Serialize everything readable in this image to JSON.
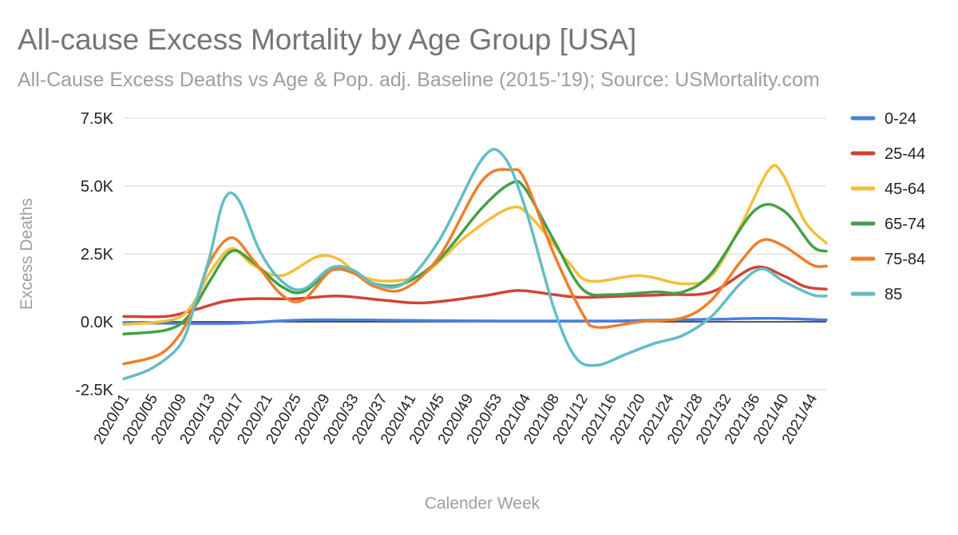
{
  "chart_data": {
    "type": "line",
    "title": "All-cause Excess Mortality by Age Group [USA]",
    "subtitle": "All-Cause Excess Deaths vs Age & Pop. adj. Baseline (2015-'19); Source: USMortality.com",
    "xlabel": "Calender Week",
    "ylabel": "Excess Deaths",
    "ylim": [
      -2500,
      7500
    ],
    "y_ticks": [
      -2500,
      0,
      2500,
      5000,
      7500
    ],
    "y_tick_labels": [
      "-2.5K",
      "0.0K",
      "2.5K",
      "5.0K",
      "7.5K"
    ],
    "x_tick_labels": [
      "2020/01",
      "2020/05",
      "2020/09",
      "2020/13",
      "2020/17",
      "2020/21",
      "2020/25",
      "2020/29",
      "2020/33",
      "2020/37",
      "2020/41",
      "2020/45",
      "2020/49",
      "2020/53",
      "2021/04",
      "2021/08",
      "2021/12",
      "2021/16",
      "2021/20",
      "2021/24",
      "2021/28",
      "2021/32",
      "2021/36",
      "2021/40",
      "2021/44"
    ],
    "weeks_total": 99,
    "grid": true,
    "legend_position": "right",
    "series": [
      {
        "name": "0-24",
        "color": "#4a7fe0",
        "points": [
          [
            0,
            -30
          ],
          [
            8,
            -60
          ],
          [
            16,
            -50
          ],
          [
            24,
            60
          ],
          [
            32,
            70
          ],
          [
            40,
            50
          ],
          [
            52,
            30
          ],
          [
            60,
            30
          ],
          [
            68,
            30
          ],
          [
            74,
            60
          ],
          [
            82,
            90
          ],
          [
            90,
            130
          ],
          [
            98,
            70
          ]
        ]
      },
      {
        "name": "25-44",
        "color": "#d04437",
        "points": [
          [
            0,
            200
          ],
          [
            6,
            200
          ],
          [
            10,
            450
          ],
          [
            14,
            750
          ],
          [
            18,
            850
          ],
          [
            24,
            850
          ],
          [
            30,
            950
          ],
          [
            36,
            800
          ],
          [
            42,
            700
          ],
          [
            50,
            950
          ],
          [
            55,
            1150
          ],
          [
            60,
            1000
          ],
          [
            64,
            900
          ],
          [
            70,
            950
          ],
          [
            76,
            1000
          ],
          [
            82,
            1100
          ],
          [
            88,
            2000
          ],
          [
            92,
            1700
          ],
          [
            95,
            1300
          ],
          [
            98,
            1200
          ]
        ]
      },
      {
        "name": "45-64",
        "color": "#f4be3a",
        "points": [
          [
            0,
            -100
          ],
          [
            5,
            0
          ],
          [
            8,
            200
          ],
          [
            10,
            800
          ],
          [
            12,
            1800
          ],
          [
            15,
            2700
          ],
          [
            18,
            2100
          ],
          [
            22,
            1700
          ],
          [
            27,
            2400
          ],
          [
            30,
            2300
          ],
          [
            33,
            1700
          ],
          [
            37,
            1500
          ],
          [
            42,
            1800
          ],
          [
            48,
            3200
          ],
          [
            54,
            4200
          ],
          [
            57,
            3800
          ],
          [
            62,
            2200
          ],
          [
            65,
            1500
          ],
          [
            72,
            1700
          ],
          [
            78,
            1400
          ],
          [
            82,
            1700
          ],
          [
            86,
            3500
          ],
          [
            90,
            5600
          ],
          [
            92,
            5400
          ],
          [
            95,
            3700
          ],
          [
            98,
            2900
          ]
        ]
      },
      {
        "name": "65-74",
        "color": "#43a047",
        "points": [
          [
            0,
            -450
          ],
          [
            6,
            -300
          ],
          [
            9,
            200
          ],
          [
            12,
            1500
          ],
          [
            15,
            2600
          ],
          [
            18,
            2200
          ],
          [
            22,
            1300
          ],
          [
            25,
            1100
          ],
          [
            29,
            1900
          ],
          [
            32,
            1800
          ],
          [
            35,
            1400
          ],
          [
            39,
            1400
          ],
          [
            44,
            2300
          ],
          [
            50,
            4200
          ],
          [
            54,
            5100
          ],
          [
            56,
            4900
          ],
          [
            60,
            3000
          ],
          [
            64,
            1200
          ],
          [
            68,
            1000
          ],
          [
            74,
            1100
          ],
          [
            78,
            1100
          ],
          [
            82,
            1800
          ],
          [
            88,
            4100
          ],
          [
            92,
            4100
          ],
          [
            96,
            2800
          ],
          [
            98,
            2600
          ]
        ]
      },
      {
        "name": "75-84",
        "color": "#f07e2a",
        "points": [
          [
            0,
            -1550
          ],
          [
            5,
            -1200
          ],
          [
            8,
            -400
          ],
          [
            10,
            700
          ],
          [
            12,
            2200
          ],
          [
            15,
            3100
          ],
          [
            18,
            2300
          ],
          [
            22,
            1000
          ],
          [
            25,
            800
          ],
          [
            29,
            1900
          ],
          [
            32,
            1800
          ],
          [
            35,
            1300
          ],
          [
            39,
            1200
          ],
          [
            44,
            2400
          ],
          [
            50,
            5200
          ],
          [
            54,
            5600
          ],
          [
            56,
            5200
          ],
          [
            60,
            2500
          ],
          [
            64,
            300
          ],
          [
            66,
            -200
          ],
          [
            72,
            0
          ],
          [
            78,
            150
          ],
          [
            82,
            800
          ],
          [
            86,
            2200
          ],
          [
            89,
            3000
          ],
          [
            92,
            2800
          ],
          [
            96,
            2100
          ],
          [
            98,
            2050
          ]
        ]
      },
      {
        "name": "85",
        "color": "#62bdc6",
        "points": [
          [
            0,
            -2100
          ],
          [
            4,
            -1700
          ],
          [
            8,
            -800
          ],
          [
            10,
            700
          ],
          [
            12,
            2400
          ],
          [
            14,
            4500
          ],
          [
            16,
            4500
          ],
          [
            19,
            2600
          ],
          [
            22,
            1500
          ],
          [
            25,
            1200
          ],
          [
            29,
            2000
          ],
          [
            32,
            1900
          ],
          [
            35,
            1400
          ],
          [
            39,
            1400
          ],
          [
            44,
            3000
          ],
          [
            50,
            6000
          ],
          [
            53,
            6100
          ],
          [
            56,
            4200
          ],
          [
            60,
            500
          ],
          [
            63,
            -1300
          ],
          [
            66,
            -1600
          ],
          [
            70,
            -1200
          ],
          [
            74,
            -800
          ],
          [
            78,
            -500
          ],
          [
            82,
            200
          ],
          [
            86,
            1400
          ],
          [
            89,
            1950
          ],
          [
            92,
            1500
          ],
          [
            96,
            1000
          ],
          [
            98,
            950
          ]
        ]
      }
    ]
  }
}
